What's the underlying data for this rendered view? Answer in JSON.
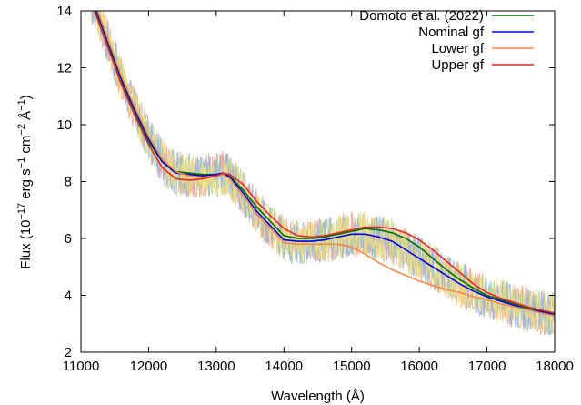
{
  "chart_data": {
    "type": "line",
    "xlabel": "Wavelength (Å)",
    "ylabel": {
      "prefix": "Flux (10",
      "exp1": "−17",
      "mid1": " erg s",
      "exp2": "−1",
      "mid2": " cm",
      "exp3": "−2",
      "mid3": " Å",
      "exp4": "−1",
      "suffix": ")"
    },
    "xlim": [
      11000,
      18000
    ],
    "ylim": [
      2,
      14
    ],
    "x_ticks": [
      11000,
      12000,
      13000,
      14000,
      15000,
      16000,
      17000,
      18000
    ],
    "y_ticks": [
      2,
      4,
      6,
      8,
      10,
      12,
      14
    ],
    "grid": false,
    "legend_position": "top-right",
    "noisy_observed_curves": [
      {
        "color": "#f2b07a",
        "seed": 3
      },
      {
        "color": "#f2a0a0",
        "seed": 7
      },
      {
        "color": "#a8d88a",
        "seed": 11
      },
      {
        "color": "#8fb3f0",
        "seed": 17
      },
      {
        "color": "#f5e07a",
        "seed": 23
      }
    ],
    "series": [
      {
        "name": "Domoto et al. (2022)",
        "color": "#007000",
        "x": [
          11200,
          11400,
          11600,
          11800,
          12000,
          12200,
          12400,
          12600,
          12800,
          13000,
          13100,
          13200,
          13400,
          13600,
          13800,
          14000,
          14200,
          14400,
          14600,
          14800,
          15000,
          15200,
          15400,
          15600,
          15800,
          16000,
          16200,
          16400,
          16600,
          16800,
          17000,
          17200,
          17400,
          17600,
          17800,
          18000
        ],
        "y": [
          14.1,
          12.8,
          11.5,
          10.4,
          9.4,
          8.7,
          8.35,
          8.3,
          8.25,
          8.25,
          8.3,
          8.2,
          7.7,
          7.1,
          6.6,
          6.1,
          6.0,
          6.0,
          6.05,
          6.15,
          6.25,
          6.35,
          6.3,
          6.2,
          6.0,
          5.7,
          5.3,
          4.9,
          4.55,
          4.25,
          4.0,
          3.85,
          3.7,
          3.55,
          3.45,
          3.35
        ]
      },
      {
        "name": "Nominal gf",
        "color": "#0000e6",
        "x": [
          11200,
          11400,
          11600,
          11800,
          12000,
          12200,
          12400,
          12600,
          12800,
          13000,
          13100,
          13200,
          13400,
          13600,
          13800,
          14000,
          14200,
          14400,
          14600,
          14800,
          15000,
          15200,
          15400,
          15600,
          15800,
          16000,
          16200,
          16400,
          16600,
          16800,
          17000,
          17200,
          17400,
          17600,
          17800,
          18000
        ],
        "y": [
          14.2,
          12.9,
          11.6,
          10.5,
          9.5,
          8.7,
          8.3,
          8.25,
          8.2,
          8.25,
          8.3,
          8.15,
          7.6,
          6.95,
          6.45,
          5.95,
          5.9,
          5.9,
          5.95,
          6.05,
          6.15,
          6.15,
          6.05,
          5.9,
          5.6,
          5.3,
          5.0,
          4.7,
          4.4,
          4.15,
          3.95,
          3.8,
          3.65,
          3.5,
          3.42,
          3.32
        ]
      },
      {
        "name": "Lower gf",
        "color": "#f08c46",
        "x": [
          11200,
          11400,
          11600,
          11800,
          12000,
          12200,
          12400,
          12600,
          12800,
          13000,
          13100,
          13200,
          13400,
          13600,
          13800,
          14000,
          14200,
          14400,
          14600,
          14800,
          15000,
          15200,
          15400,
          15600,
          15800,
          16000,
          16200,
          16400,
          16600,
          16800,
          17000,
          17200,
          17400,
          17600,
          17800,
          18000
        ],
        "y": [
          14.3,
          13.0,
          11.7,
          10.6,
          9.6,
          8.8,
          8.35,
          8.2,
          8.15,
          8.2,
          8.25,
          8.1,
          7.5,
          6.85,
          6.35,
          5.85,
          5.8,
          5.8,
          5.8,
          5.8,
          5.7,
          5.45,
          5.15,
          4.9,
          4.7,
          4.5,
          4.35,
          4.2,
          4.1,
          3.95,
          3.85,
          3.7,
          3.6,
          3.5,
          3.38,
          3.28
        ]
      },
      {
        "name": "Upper gf",
        "color": "#e62828",
        "x": [
          11200,
          11400,
          11600,
          11800,
          12000,
          12200,
          12400,
          12600,
          12800,
          13000,
          13100,
          13200,
          13400,
          13600,
          13800,
          14000,
          14200,
          14400,
          14600,
          14800,
          15000,
          15200,
          15400,
          15600,
          15800,
          16000,
          16200,
          16400,
          16600,
          16800,
          17000,
          17200,
          17400,
          17600,
          17800,
          18000
        ],
        "y": [
          14.0,
          12.7,
          11.4,
          10.3,
          9.3,
          8.5,
          8.1,
          8.05,
          8.1,
          8.2,
          8.3,
          8.25,
          7.9,
          7.3,
          6.8,
          6.35,
          6.1,
          6.05,
          6.1,
          6.2,
          6.3,
          6.4,
          6.4,
          6.35,
          6.2,
          5.95,
          5.6,
          5.2,
          4.8,
          4.4,
          4.1,
          3.9,
          3.75,
          3.6,
          3.48,
          3.38
        ]
      }
    ]
  }
}
